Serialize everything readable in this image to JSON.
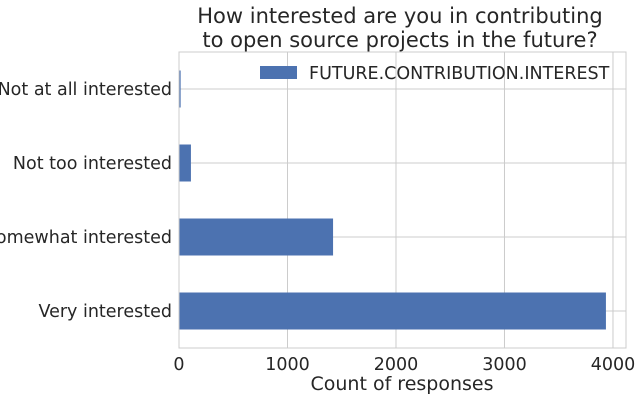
{
  "chart_data": {
    "type": "bar",
    "orientation": "horizontal",
    "title": [
      "How interested are you in contributing",
      "to open source projects in the future?"
    ],
    "categories": [
      "Not at all interested",
      "Not too interested",
      "Somewhat interested",
      "Very interested"
    ],
    "series": [
      {
        "name": "FUTURE.CONTRIBUTION.INTEREST",
        "values": [
          15,
          110,
          1420,
          3935
        ],
        "color": "#4c72b0"
      }
    ],
    "xlabel": "Count of responses",
    "ylabel": "",
    "xlim": [
      0,
      4120
    ],
    "xticks": [
      0,
      1000,
      2000,
      3000,
      4000
    ],
    "grid": true,
    "legend": "top-right"
  }
}
